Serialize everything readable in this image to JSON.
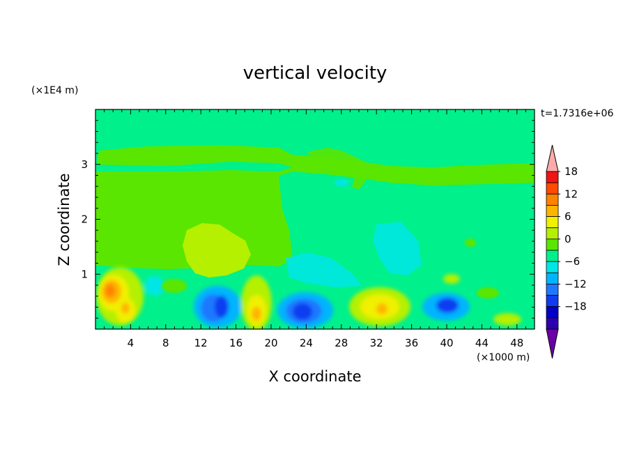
{
  "chart_data": {
    "type": "heatmap",
    "title": "vertical velocity",
    "xlabel": "X coordinate",
    "ylabel": "Z coordinate",
    "x_unit": "(×1000 m)",
    "y_unit": "(×1E4 m)",
    "time_label": "t=1.7316e+06",
    "xlim": [
      0,
      50
    ],
    "ylim": [
      0,
      4
    ],
    "x_ticks": [
      "4",
      "8",
      "12",
      "16",
      "20",
      "24",
      "28",
      "32",
      "36",
      "40",
      "44",
      "48"
    ],
    "y_ticks": [
      "1",
      "2",
      "3"
    ],
    "colorbar": {
      "levels": [
        -21,
        -18,
        -15,
        -12,
        -9,
        -6,
        -3,
        0,
        3,
        6,
        9,
        12,
        15,
        18,
        21
      ],
      "colors": [
        "#6a00a6",
        "#2a00b0",
        "#0000c8",
        "#0f3cf0",
        "#1e78ff",
        "#00b4ff",
        "#00e6e6",
        "#00f08c",
        "#5ae600",
        "#b4f000",
        "#f0f000",
        "#ffb400",
        "#ff8200",
        "#ff4a00",
        "#f01414",
        "#ffaaaa"
      ],
      "tick_labels": [
        "18",
        "12",
        "6",
        "0",
        "−6",
        "−12",
        "−18"
      ]
    },
    "features": [
      {
        "x": 2.0,
        "z": 0.65,
        "w": 16,
        "type": "updraft"
      },
      {
        "x": 3.6,
        "z": 0.45,
        "w": 9,
        "type": "updraft"
      },
      {
        "x": 6.5,
        "z": 0.8,
        "w": -2,
        "type": "downdraft"
      },
      {
        "x": 13.8,
        "z": 0.4,
        "w": -11,
        "type": "downdraft"
      },
      {
        "x": 18.5,
        "z": 0.35,
        "w": 11,
        "type": "updraft"
      },
      {
        "x": 23.8,
        "z": 0.35,
        "w": -13,
        "type": "downdraft"
      },
      {
        "x": 32.5,
        "z": 0.4,
        "w": 9,
        "type": "updraft"
      },
      {
        "x": 40.0,
        "z": 0.45,
        "w": -11,
        "type": "downdraft"
      },
      {
        "x": 46.5,
        "z": 0.25,
        "w": 4,
        "type": "updraft"
      },
      {
        "x": 16.0,
        "z": 1.4,
        "w": 2,
        "type": "updraft"
      }
    ]
  }
}
